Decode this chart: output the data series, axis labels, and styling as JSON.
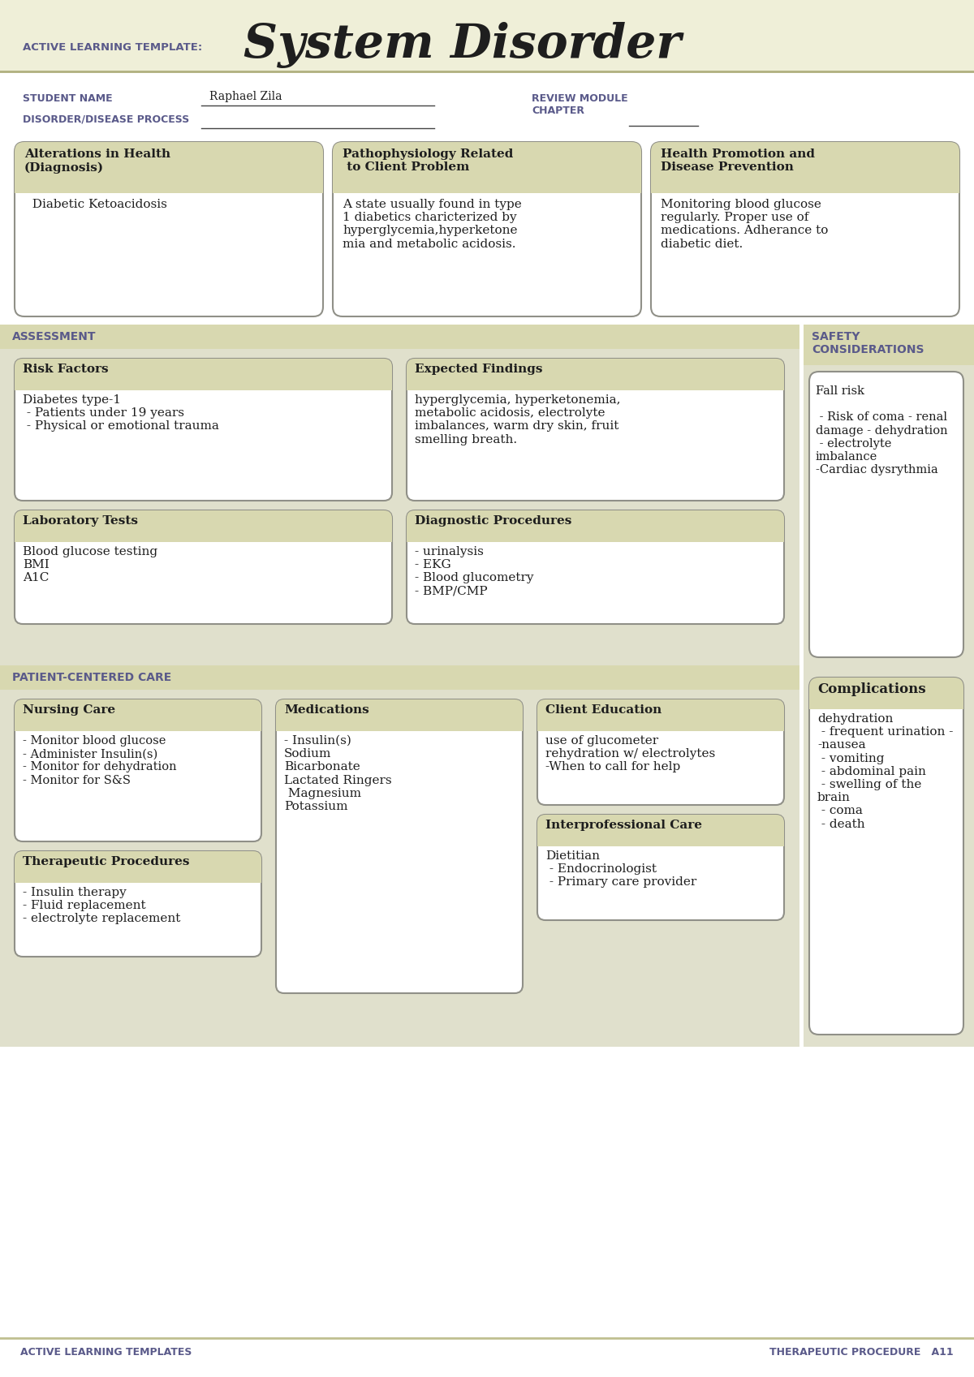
{
  "bg_color": "#efefd8",
  "white": "#ffffff",
  "olive_header": "#deded8",
  "section_bg": "#e8e8d0",
  "border_color": "#999988",
  "purple_label": "#5a5a8a",
  "title_main": "System Disorder",
  "title_prefix": "ACTIVE LEARNING TEMPLATE:",
  "student_name": "Raphael Zila",
  "student_label": "STUDENT NAME",
  "disorder_label": "DISORDER/DISEASE PROCESS",
  "review_label": "REVIEW MODULE\nCHAPTER",
  "section1_title": "Alterations in Health\n(Diagnosis)",
  "section1_body": "  Diabetic Ketoacidosis",
  "section2_title": "Pathophysiology Related\n to Client Problem",
  "section2_body": "A state usually found in type\n1 diabetics charicterized by\nhyperglycemia,hyperketone\nmia and metabolic acidosis.",
  "section3_title": "Health Promotion and\nDisease Prevention",
  "section3_body": "Monitoring blood glucose\nregularly. Proper use of\nmedications. Adherance to\ndiabetic diet.",
  "assess_label": "ASSESSMENT",
  "safety_label": "SAFETY\nCONSIDERATIONS",
  "risk_title": "Risk Factors",
  "risk_body": "Diabetes type-1\n - Patients under 19 years\n - Physical or emotional trauma",
  "expected_title": "Expected Findings",
  "expected_body": "hyperglycemia, hyperketonemia,\nmetabolic acidosis, electrolyte\nimbalances, warm dry skin, fruit\nsmelling breath.",
  "safety_body": "Fall risk\n\n - Risk of coma - renal\ndamage - dehydration\n - electrolyte\nimbalance\n-Cardiac dysrythmia",
  "lab_title": "Laboratory Tests",
  "lab_body": "Blood glucose testing\nBMI\nA1C",
  "diag_title": "Diagnostic Procedures",
  "diag_body": "- urinalysis\n- EKG\n- Blood glucometry\n- BMP/CMP",
  "patient_label": "PATIENT-CENTERED CARE",
  "complications_title": "Complications",
  "complications_body": "dehydration\n - frequent urination -\n-nausea\n - vomiting\n - abdominal pain\n - swelling of the\nbrain\n - coma\n - death",
  "nursing_title": "Nursing Care",
  "nursing_body": "- Monitor blood glucose\n- Administer Insulin(s)\n- Monitor for dehydration\n- Monitor for S&S",
  "meds_title": "Medications",
  "meds_body": "- Insulin(s)\nSodium\nBicarbonate\nLactated Ringers\n Magnesium\nPotassium",
  "client_title": "Client Education",
  "client_body": "use of glucometer\nrehydration w/ electrolytes\n-When to call for help",
  "therapy_title": "Therapeutic Procedures",
  "therapy_body": "- Insulin therapy\n- Fluid replacement\n- electrolyte replacement",
  "interpro_title": "Interprofessional Care",
  "interpro_body": "Dietitian\n - Endocrinologist\n - Primary care provider",
  "footer_left": "ACTIVE LEARNING TEMPLATES",
  "footer_right": "THERAPEUTIC PROCEDURE   A11"
}
